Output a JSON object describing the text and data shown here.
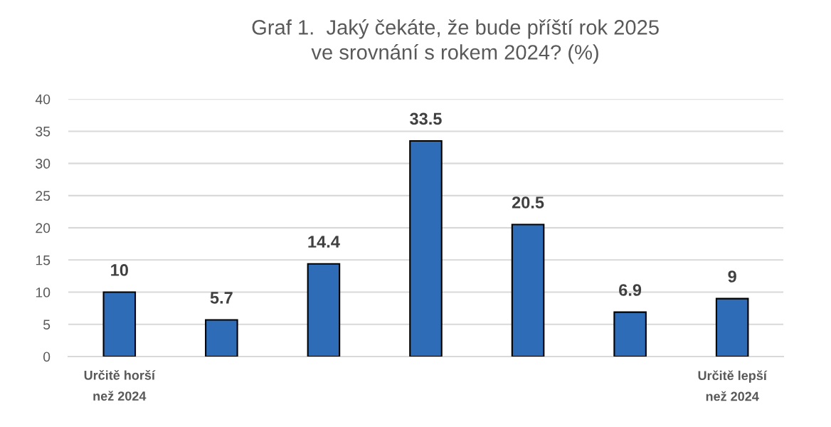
{
  "chart_data": {
    "type": "bar",
    "title": "Graf 1.  Jaký čekáte, že bude příští rok 2025\nve srovnání s rokem 2024? (%)",
    "categories": [
      "Určitě horší\nnež 2024",
      null,
      null,
      null,
      null,
      null,
      "Určitě lepší\nnež 2024"
    ],
    "values": [
      10,
      5.7,
      14.4,
      33.5,
      20.5,
      6.9,
      9
    ],
    "color": "#2e6cb8",
    "ylim": [
      0,
      40
    ],
    "yticks": [
      0,
      5,
      10,
      15,
      20,
      25,
      30,
      35,
      40
    ],
    "grid": "y",
    "data_labels": true
  }
}
